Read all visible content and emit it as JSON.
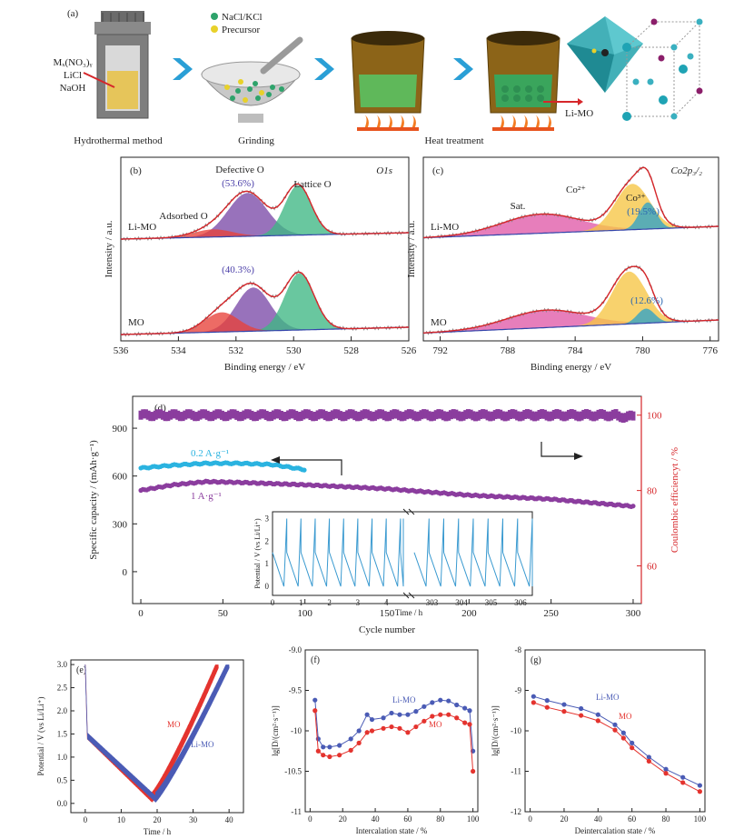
{
  "panel_a": {
    "label": "(a)",
    "reagents": [
      "Mₓ(NO₃)ᵧ",
      "LiCl",
      "NaOH"
    ],
    "legend": [
      {
        "name": "NaCl/KCl",
        "color": "#2ea36b"
      },
      {
        "name": "Precursor",
        "color": "#e8d12a"
      }
    ],
    "steps": [
      "Hydrothermal method",
      "Grinding",
      "Heat treatment"
    ],
    "product": "Li-MO"
  },
  "chart_data": [
    {
      "id": "b",
      "type": "line",
      "label": "(b)",
      "title": "O1s",
      "xlabel": "Binding energy / eV",
      "ylabel": "Intensity / a.u.",
      "xlim": [
        536,
        526
      ],
      "xticks": [
        536,
        534,
        532,
        530,
        528,
        526
      ],
      "annotations": [
        "Defective O",
        "Adsorbed O",
        "Lattice O"
      ],
      "series": [
        {
          "name": "Li-MO",
          "defective_percent": "(53.6%)",
          "peaks": [
            {
              "center": 531.6,
              "fwhm": 1.6,
              "height": 0.68,
              "color": "#7b4aa8"
            },
            {
              "center": 529.85,
              "fwhm": 1.1,
              "height": 0.78,
              "color": "#3fb784"
            },
            {
              "center": 532.8,
              "fwhm": 1.6,
              "height": 0.12,
              "color": "#e8413a"
            }
          ]
        },
        {
          "name": "MO",
          "defective_percent": "(40.3%)",
          "peaks": [
            {
              "center": 531.4,
              "fwhm": 1.4,
              "height": 0.6,
              "color": "#7b4aa8"
            },
            {
              "center": 529.8,
              "fwhm": 1.2,
              "height": 0.78,
              "color": "#3fb784"
            },
            {
              "center": 532.5,
              "fwhm": 1.4,
              "height": 0.27,
              "color": "#e8413a"
            }
          ]
        }
      ]
    },
    {
      "id": "c",
      "type": "line",
      "label": "(c)",
      "title": "Co2p₃/₂",
      "xlabel": "Binding energy / eV",
      "ylabel": "Intensity / a.u.",
      "xlim": [
        793,
        775.5
      ],
      "xticks": [
        792,
        788,
        784,
        780,
        776
      ],
      "annotations": [
        "Sat.",
        "Co²⁺",
        "Co³⁺"
      ],
      "series": [
        {
          "name": "Li-MO",
          "co3_percent": "(19.5%)",
          "peaks": [
            {
              "center": 786,
              "fwhm": 5.5,
              "height": 0.3,
              "color": "#e05aa8"
            },
            {
              "center": 780.6,
              "fwhm": 2.4,
              "height": 0.72,
              "color": "#f6c544"
            },
            {
              "center": 779.7,
              "fwhm": 1.2,
              "height": 0.42,
              "color": "#2ea3c8"
            }
          ]
        },
        {
          "name": "MO",
          "co3_percent": "(12.6%)",
          "peaks": [
            {
              "center": 785.7,
              "fwhm": 5.5,
              "height": 0.24,
              "color": "#e05aa8"
            },
            {
              "center": 780.8,
              "fwhm": 2.4,
              "height": 0.72,
              "color": "#f6c544"
            },
            {
              "center": 779.8,
              "fwhm": 1.2,
              "height": 0.2,
              "color": "#2ea3c8"
            }
          ]
        }
      ]
    },
    {
      "id": "d",
      "type": "scatter",
      "label": "(d)",
      "xlabel": "Cycle number",
      "ylabel": "Specific capacity / (mAh·g⁻¹)",
      "y2label": "Coulombic efficiencyt / %",
      "xlim": [
        -5,
        305
      ],
      "ylim": [
        -200,
        1100
      ],
      "y2lim": [
        50,
        105
      ],
      "xticks": [
        0,
        50,
        100,
        150,
        200,
        250,
        300
      ],
      "yticks": [
        0,
        300,
        600,
        900
      ],
      "y2ticks": [
        60,
        80,
        100
      ],
      "series": [
        {
          "name": "0.2 A·g⁻¹",
          "color": "#2ab3e0",
          "x_range": [
            0,
            100
          ],
          "points": [
            [
              0,
              650
            ],
            [
              20,
              668
            ],
            [
              40,
              680
            ],
            [
              60,
              680
            ],
            [
              80,
              672
            ],
            [
              100,
              640
            ]
          ]
        },
        {
          "name": "1 A·g⁻¹",
          "color": "#8b3d9e",
          "x_range": [
            0,
            300
          ],
          "points": [
            [
              0,
              510
            ],
            [
              20,
              545
            ],
            [
              40,
              565
            ],
            [
              60,
              560
            ],
            [
              100,
              545
            ],
            [
              150,
              520
            ],
            [
              200,
              480
            ],
            [
              250,
              455
            ],
            [
              300,
              410
            ]
          ]
        },
        {
          "name": "Coulombic efficiency",
          "color": "#8b3d9e",
          "axis": "y2",
          "value": 100
        }
      ],
      "inset": {
        "xlabel": "Time / h",
        "ylabel": "Potential / V (vs Li/Li⁺)",
        "xticks_left": [
          0,
          1,
          2,
          3,
          4
        ],
        "xticks_right": [
          303,
          304,
          305,
          306
        ],
        "yticks": [
          0,
          1,
          2,
          3
        ],
        "ylim": [
          -0.4,
          3.3
        ],
        "color": "#3a9ad0",
        "left_range": [
          0,
          4.6
        ],
        "right_range": [
          302.4,
          306.4
        ],
        "cycle_period_h": 0.5
      }
    },
    {
      "id": "e",
      "type": "line",
      "label": "(e)",
      "xlabel": "Time / h",
      "ylabel": "Potential / V (vs Li/Li⁺)",
      "xlim": [
        -4,
        44
      ],
      "ylim": [
        -0.2,
        3.1
      ],
      "xticks": [
        0,
        10,
        20,
        30,
        40
      ],
      "yticks": [
        0.0,
        0.5,
        1.0,
        1.5,
        2.0,
        2.5,
        3.0
      ],
      "series": [
        {
          "name": "MO",
          "color": "#e4332e",
          "min_time": 18.5,
          "end_time": 37
        },
        {
          "name": "Li-MO",
          "color": "#4a5bb5",
          "min_time": 19.5,
          "end_time": 40
        }
      ]
    },
    {
      "id": "f",
      "type": "line",
      "label": "(f)",
      "xlabel": "Intercalation state / %",
      "ylabel": "lg[D/(cm²·s⁻¹)]",
      "xlim": [
        -3,
        103
      ],
      "ylim": [
        -11.0,
        -9.0
      ],
      "xticks": [
        0,
        20,
        40,
        60,
        80,
        100
      ],
      "yticks": [
        -11.0,
        -10.5,
        -10.0,
        -9.5,
        -9.0
      ],
      "series": [
        {
          "name": "Li-MO",
          "color": "#4a5bb5",
          "x": [
            3,
            5,
            8,
            12,
            18,
            25,
            30,
            35,
            38,
            45,
            50,
            55,
            60,
            65,
            70,
            75,
            80,
            85,
            90,
            95,
            98,
            100
          ],
          "y": [
            -9.62,
            -10.1,
            -10.2,
            -10.2,
            -10.18,
            -10.1,
            -10.0,
            -9.8,
            -9.86,
            -9.84,
            -9.78,
            -9.8,
            -9.8,
            -9.76,
            -9.7,
            -9.65,
            -9.62,
            -9.63,
            -9.68,
            -9.72,
            -9.75,
            -10.25
          ]
        },
        {
          "name": "MO",
          "color": "#e4332e",
          "x": [
            3,
            5,
            8,
            12,
            18,
            25,
            30,
            35,
            38,
            45,
            50,
            55,
            60,
            65,
            70,
            75,
            80,
            85,
            90,
            95,
            98,
            100
          ],
          "y": [
            -9.75,
            -10.25,
            -10.3,
            -10.32,
            -10.3,
            -10.24,
            -10.15,
            -10.02,
            -10.0,
            -9.97,
            -9.95,
            -9.97,
            -10.02,
            -9.95,
            -9.88,
            -9.82,
            -9.8,
            -9.8,
            -9.84,
            -9.9,
            -9.92,
            -10.5
          ]
        }
      ]
    },
    {
      "id": "g",
      "type": "line",
      "label": "(g)",
      "xlabel": "Deintercalation state / %",
      "ylabel": "lg[D/(cm²·s⁻¹)]",
      "xlim": [
        -3,
        103
      ],
      "ylim": [
        -12,
        -8
      ],
      "xticks": [
        0,
        20,
        40,
        60,
        80,
        100
      ],
      "yticks": [
        -12,
        -11,
        -10,
        -9,
        -8
      ],
      "series": [
        {
          "name": "Li-MO",
          "color": "#4a5bb5",
          "x": [
            2,
            10,
            20,
            30,
            40,
            50,
            55,
            60,
            70,
            80,
            90,
            100
          ],
          "y": [
            -9.15,
            -9.25,
            -9.35,
            -9.45,
            -9.6,
            -9.85,
            -10.05,
            -10.3,
            -10.65,
            -10.95,
            -11.15,
            -11.35
          ]
        },
        {
          "name": "MO",
          "color": "#e4332e",
          "x": [
            2,
            10,
            20,
            30,
            40,
            50,
            55,
            60,
            70,
            80,
            90,
            100
          ],
          "y": [
            -9.3,
            -9.42,
            -9.52,
            -9.62,
            -9.75,
            -9.98,
            -10.18,
            -10.42,
            -10.75,
            -11.05,
            -11.28,
            -11.5
          ]
        }
      ]
    }
  ]
}
